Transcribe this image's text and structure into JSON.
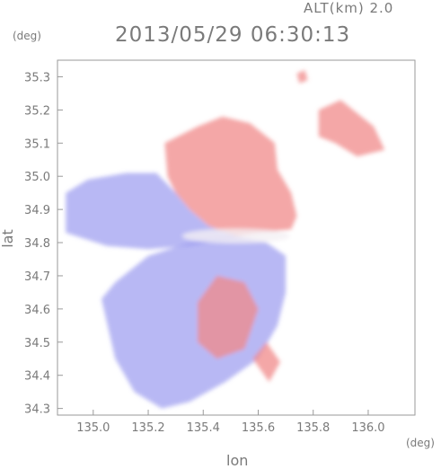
{
  "header": {
    "altitude": "ALT(km) 2.0",
    "timestamp": "2013/05/29 06:30:13"
  },
  "axes": {
    "y_unit": "(deg)",
    "x_unit": "(deg)",
    "xlabel": "lon",
    "ylabel": "lat"
  },
  "chart_data": {
    "type": "heatmap",
    "title": "2013/05/29 06:30:13",
    "xlabel": "lon",
    "ylabel": "lat",
    "xlim": [
      134.87,
      136.17
    ],
    "ylim": [
      34.28,
      35.35
    ],
    "x_ticks": [
      "135.0",
      "135.2",
      "135.4",
      "135.6",
      "135.8",
      "136.0"
    ],
    "y_ticks": [
      "34.3",
      "34.4",
      "34.5",
      "34.6",
      "34.7",
      "34.8",
      "34.9",
      "35.0",
      "35.1",
      "35.2",
      "35.3"
    ],
    "radar_center": [
      135.52,
      34.82
    ],
    "colors": {
      "receding": "#f08a8a",
      "approaching": "#9a9af0",
      "neutral": "#f4f0f4"
    },
    "regions": [
      {
        "name": "north-receding",
        "polarity": "positive",
        "points": [
          [
            135.27,
            35.0
          ],
          [
            135.26,
            35.1
          ],
          [
            135.38,
            35.15
          ],
          [
            135.47,
            35.18
          ],
          [
            135.57,
            35.16
          ],
          [
            135.66,
            35.1
          ],
          [
            135.67,
            35.02
          ],
          [
            135.72,
            34.95
          ],
          [
            135.74,
            34.88
          ],
          [
            135.72,
            34.84
          ],
          [
            135.6,
            34.83
          ],
          [
            135.52,
            34.82
          ],
          [
            135.42,
            34.85
          ],
          [
            135.35,
            34.9
          ],
          [
            135.3,
            34.95
          ]
        ]
      },
      {
        "name": "west-approaching",
        "polarity": "negative",
        "points": [
          [
            134.9,
            34.95
          ],
          [
            134.9,
            34.83
          ],
          [
            135.05,
            34.79
          ],
          [
            135.2,
            34.78
          ],
          [
            135.35,
            34.79
          ],
          [
            135.5,
            34.81
          ],
          [
            135.52,
            34.82
          ],
          [
            135.42,
            34.85
          ],
          [
            135.35,
            34.9
          ],
          [
            135.3,
            34.95
          ],
          [
            135.23,
            35.01
          ],
          [
            135.12,
            35.01
          ],
          [
            134.98,
            34.99
          ]
        ]
      },
      {
        "name": "south-approaching",
        "polarity": "negative",
        "points": [
          [
            135.03,
            34.63
          ],
          [
            135.08,
            34.68
          ],
          [
            135.2,
            34.76
          ],
          [
            135.35,
            34.8
          ],
          [
            135.52,
            34.82
          ],
          [
            135.63,
            34.8
          ],
          [
            135.7,
            34.76
          ],
          [
            135.7,
            34.65
          ],
          [
            135.67,
            34.55
          ],
          [
            135.6,
            34.45
          ],
          [
            135.48,
            34.38
          ],
          [
            135.35,
            34.32
          ],
          [
            135.25,
            34.3
          ],
          [
            135.15,
            34.35
          ],
          [
            135.08,
            34.45
          ]
        ]
      },
      {
        "name": "south-mixed",
        "polarity": "positive",
        "points": [
          [
            135.38,
            34.62
          ],
          [
            135.45,
            34.7
          ],
          [
            135.55,
            34.68
          ],
          [
            135.6,
            34.6
          ],
          [
            135.55,
            34.48
          ],
          [
            135.45,
            34.45
          ],
          [
            135.38,
            34.5
          ]
        ]
      },
      {
        "name": "southeast-mixed",
        "polarity": "positive",
        "points": [
          [
            135.58,
            34.45
          ],
          [
            135.63,
            34.5
          ],
          [
            135.68,
            34.44
          ],
          [
            135.64,
            34.38
          ]
        ]
      },
      {
        "name": "northeast-clutter",
        "polarity": "positive",
        "points": [
          [
            135.82,
            35.2
          ],
          [
            135.9,
            35.23
          ],
          [
            136.02,
            35.15
          ],
          [
            136.06,
            35.08
          ],
          [
            135.96,
            35.06
          ],
          [
            135.88,
            35.1
          ],
          [
            135.82,
            35.12
          ]
        ]
      },
      {
        "name": "far-north-echo",
        "polarity": "positive",
        "points": [
          [
            135.74,
            35.31
          ],
          [
            135.77,
            35.32
          ],
          [
            135.78,
            35.29
          ],
          [
            135.75,
            35.28
          ]
        ]
      }
    ]
  }
}
